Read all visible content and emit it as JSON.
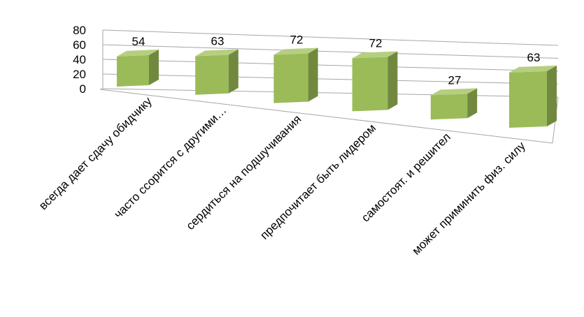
{
  "chart_data": {
    "type": "bar",
    "style": "3d-perspective",
    "categories": [
      "всегда дает сдачу обидчику",
      "часто ссорится с другими…",
      "сердиться на подшучивания",
      "предпочитает быть лидером",
      "самостоят. и решител",
      "может приминить физ. силу"
    ],
    "values": [
      54,
      63,
      72,
      72,
      27,
      63
    ],
    "ylim": [
      0,
      80
    ],
    "yticks": [
      0,
      20,
      40,
      60,
      80
    ],
    "grid": true,
    "legend": "none",
    "colors": {
      "bar_front": "#9BBB59",
      "bar_side": "#71893F",
      "bar_top": "#B5CF7F",
      "gridline": "#A6A6A6"
    }
  }
}
